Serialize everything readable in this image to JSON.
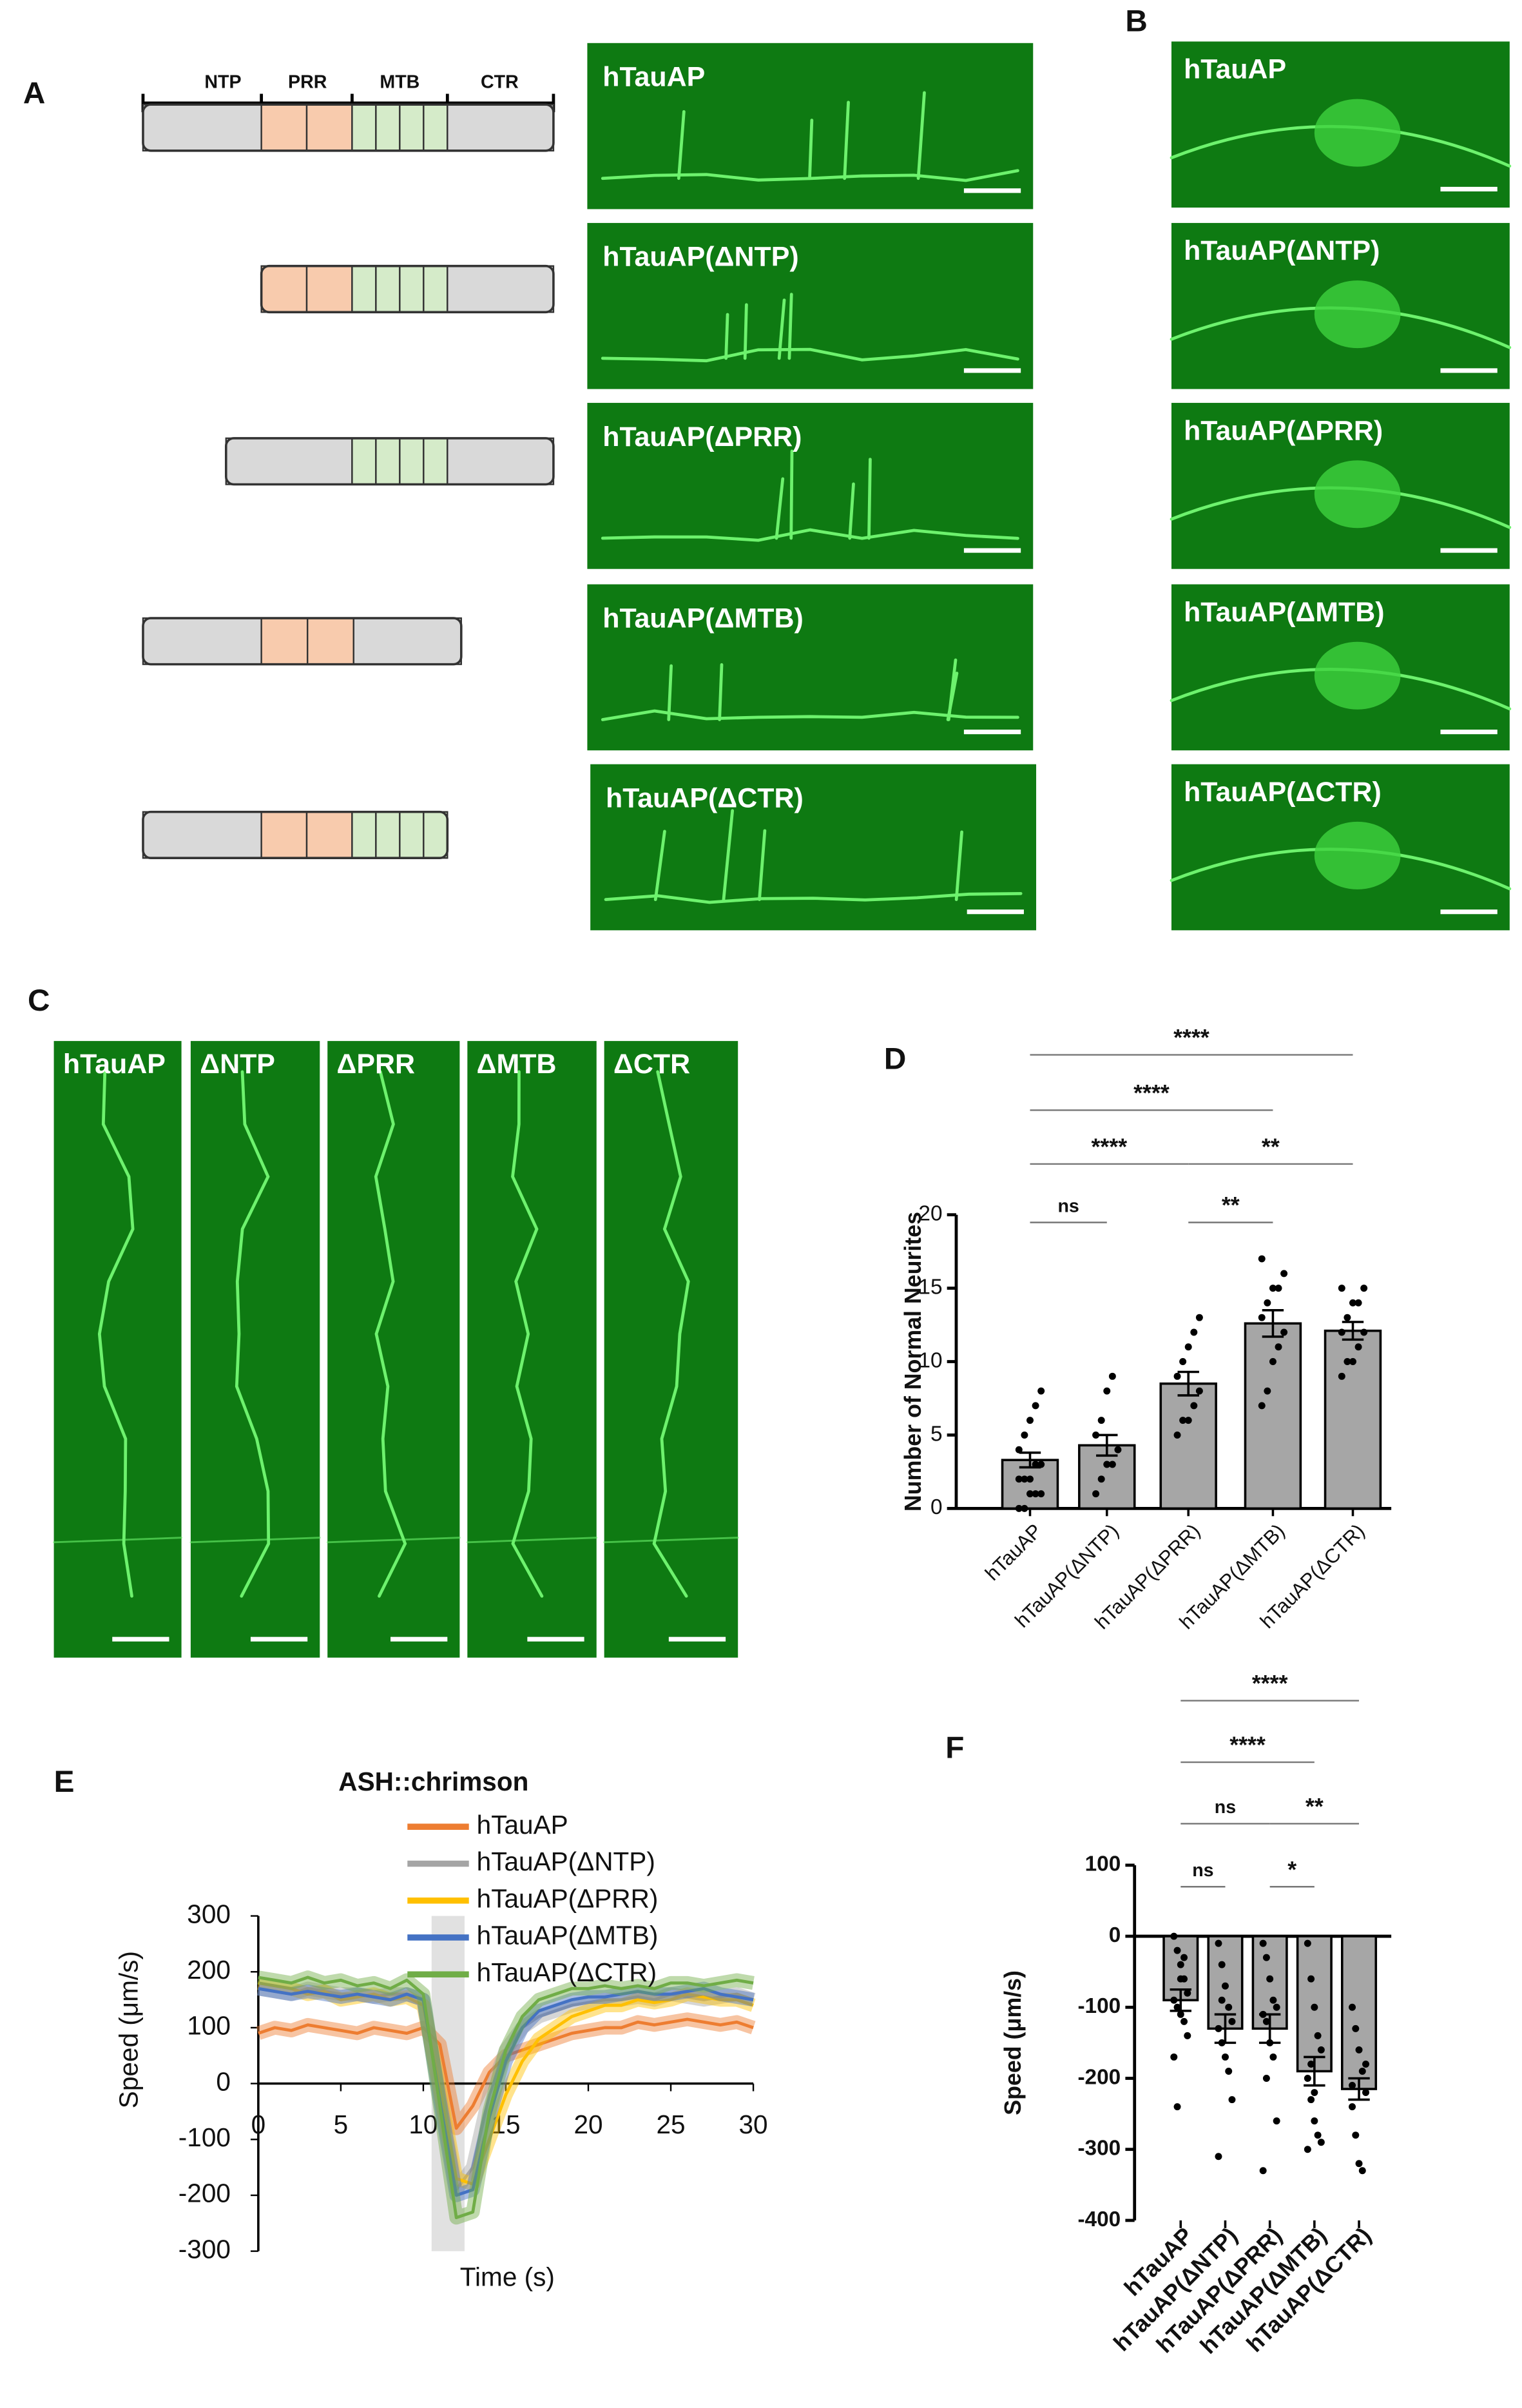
{
  "panel_labels": [
    "A",
    "B",
    "C",
    "D",
    "E",
    "F"
  ],
  "panel_a": {
    "domains": [
      "NTP",
      "PRR",
      "MTB",
      "CTR"
    ],
    "constructs": [
      "hTauAP",
      "hTauAP(ΔNTP)",
      "hTauAP(ΔPRR)",
      "hTauAP(ΔMTB)",
      "hTauAP(ΔCTR)"
    ]
  },
  "panel_b": {
    "labels": [
      "hTauAP",
      "hTauAP(ΔNTP)",
      "hTauAP(ΔPRR)",
      "hTauAP(ΔMTB)",
      "hTauAP(ΔCTR)"
    ]
  },
  "panel_c": {
    "labels": [
      "hTauAP",
      "ΔNTP",
      "ΔPRR",
      "ΔMTB",
      "ΔCTR"
    ]
  },
  "chart_data": [
    {
      "type": "bar",
      "y_label": "Number of Normal Neurites",
      "categories": [
        "hTauAP",
        "hTauAP(ΔNTP)",
        "hTauAP(ΔPRR)",
        "hTauAP(ΔMTB)",
        "hTauAP(ΔCTR)"
      ],
      "values": [
        3.3,
        4.3,
        8.5,
        12.6,
        12.1
      ],
      "errors": [
        0.5,
        0.7,
        0.8,
        0.9,
        0.6
      ],
      "points": [
        [
          0,
          0,
          1,
          1,
          1,
          2,
          2,
          2,
          3,
          3,
          4,
          5,
          6,
          7,
          8
        ],
        [
          1,
          2,
          3,
          3,
          4,
          5,
          6,
          8,
          9
        ],
        [
          5,
          6,
          6,
          7,
          8,
          9,
          10,
          11,
          12,
          13
        ],
        [
          7,
          8,
          10,
          11,
          12,
          13,
          14,
          15,
          15,
          16,
          17
        ],
        [
          9,
          10,
          10,
          11,
          12,
          12,
          13,
          14,
          14,
          15,
          15
        ]
      ],
      "color": "#a6a6a6",
      "ylim": [
        0,
        20
      ],
      "yticks": [
        0,
        5,
        10,
        15,
        20
      ],
      "significance": [
        {
          "from": "hTauAP",
          "to": "hTauAP(ΔCTR)",
          "label": "****"
        },
        {
          "from": "hTauAP",
          "to": "hTauAP(ΔMTB)",
          "label": "****"
        },
        {
          "from": "hTauAP",
          "to": "hTauAP(ΔPRR)",
          "label": "****"
        },
        {
          "from": "hTauAP(ΔPRR)",
          "to": "hTauAP(ΔCTR)",
          "label": "**"
        },
        {
          "from": "hTauAP",
          "to": "hTauAP(ΔNTP)",
          "label": "ns"
        },
        {
          "from": "hTauAP(ΔPRR)",
          "to": "hTauAP(ΔMTB)",
          "label": "**"
        }
      ]
    },
    {
      "type": "line",
      "title": "ASH::chrimson",
      "x_label": "Time (s)",
      "y_label": "Speed (μm/s)",
      "x": [
        0,
        1,
        2,
        3,
        4,
        5,
        6,
        7,
        8,
        9,
        10,
        11,
        12,
        13,
        14,
        15,
        16,
        17,
        18,
        19,
        20,
        21,
        22,
        23,
        24,
        25,
        26,
        27,
        28,
        29,
        30
      ],
      "series": [
        {
          "name": "hTauAP",
          "color": "#ed7d31",
          "values": [
            90,
            100,
            95,
            105,
            100,
            95,
            90,
            100,
            95,
            90,
            100,
            70,
            -80,
            -40,
            20,
            50,
            60,
            70,
            80,
            90,
            95,
            100,
            100,
            110,
            105,
            110,
            115,
            110,
            105,
            110,
            100
          ]
        },
        {
          "name": "hTauAP(ΔNTP)",
          "color": "#a5a5a5",
          "values": [
            170,
            165,
            160,
            170,
            165,
            160,
            160,
            155,
            160,
            160,
            150,
            -20,
            -190,
            -150,
            -20,
            60,
            100,
            120,
            130,
            140,
            145,
            150,
            150,
            155,
            150,
            160,
            155,
            150,
            155,
            160,
            150
          ]
        },
        {
          "name": "hTauAP(ΔPRR)",
          "color": "#ffc000",
          "values": [
            180,
            175,
            170,
            160,
            165,
            150,
            155,
            160,
            150,
            155,
            140,
            -10,
            -170,
            -180,
            -100,
            -20,
            40,
            80,
            100,
            120,
            130,
            140,
            140,
            150,
            145,
            150,
            160,
            155,
            150,
            150,
            140
          ]
        },
        {
          "name": "hTauAP(ΔMTB)",
          "color": "#4472c4",
          "values": [
            170,
            165,
            160,
            165,
            160,
            155,
            160,
            155,
            150,
            160,
            150,
            -30,
            -200,
            -190,
            -60,
            40,
            100,
            130,
            140,
            150,
            155,
            155,
            160,
            165,
            160,
            160,
            165,
            170,
            160,
            155,
            150
          ]
        },
        {
          "name": "hTauAP(ΔCTR)",
          "color": "#70ad47",
          "values": [
            190,
            185,
            180,
            190,
            180,
            185,
            175,
            180,
            170,
            185,
            160,
            -40,
            -240,
            -230,
            -50,
            60,
            120,
            150,
            160,
            170,
            170,
            175,
            170,
            175,
            170,
            180,
            180,
            175,
            180,
            185,
            180
          ]
        }
      ],
      "shaded_x": [
        10.5,
        12.5
      ],
      "xlim": [
        0,
        30
      ],
      "ylim": [
        -300,
        300
      ],
      "xticks": [
        0,
        5,
        10,
        15,
        20,
        25,
        30
      ],
      "yticks": [
        -300,
        -200,
        -100,
        0,
        100,
        200,
        300
      ]
    },
    {
      "type": "bar",
      "y_label": "Speed (μm/s)",
      "categories": [
        "hTauAP",
        "hTauAP(ΔNTP)",
        "hTauAP(ΔPRR)",
        "hTauAP(ΔMTB)",
        "hTauAP(ΔCTR)"
      ],
      "values": [
        -90,
        -130,
        -130,
        -190,
        -215
      ],
      "errors": [
        15,
        20,
        20,
        20,
        15
      ],
      "points": [
        [
          0,
          -20,
          -40,
          -60,
          -80,
          -90,
          -100,
          -110,
          -120,
          -140,
          -170,
          -240,
          -60,
          -30
        ],
        [
          -10,
          -40,
          -70,
          -100,
          -120,
          -130,
          -150,
          -170,
          -190,
          -230,
          -310,
          -90
        ],
        [
          -10,
          -30,
          -60,
          -90,
          -100,
          -110,
          -120,
          -150,
          -170,
          -260,
          -330,
          -200
        ],
        [
          -10,
          -60,
          -100,
          -140,
          -160,
          -200,
          -230,
          -260,
          -280,
          -290,
          -300,
          -180,
          -220
        ],
        [
          -100,
          -130,
          -160,
          -190,
          -220,
          -240,
          -280,
          -320,
          -330,
          -180,
          -210
        ]
      ],
      "color": "#a6a6a6",
      "ylim": [
        -400,
        100
      ],
      "yticks": [
        -400,
        -300,
        -200,
        -100,
        0,
        100
      ],
      "significance": [
        {
          "from": "hTauAP",
          "to": "hTauAP(ΔCTR)",
          "label": "****"
        },
        {
          "from": "hTauAP",
          "to": "hTauAP(ΔMTB)",
          "label": "****"
        },
        {
          "from": "hTauAP",
          "to": "hTauAP(ΔPRR)",
          "label": "ns"
        },
        {
          "from": "hTauAP(ΔPRR)",
          "to": "hTauAP(ΔCTR)",
          "label": "**"
        },
        {
          "from": "hTauAP",
          "to": "hTauAP(ΔNTP)",
          "label": "ns"
        },
        {
          "from": "hTauAP(ΔPRR)",
          "to": "hTauAP(ΔMTB)",
          "label": "*"
        }
      ]
    }
  ]
}
